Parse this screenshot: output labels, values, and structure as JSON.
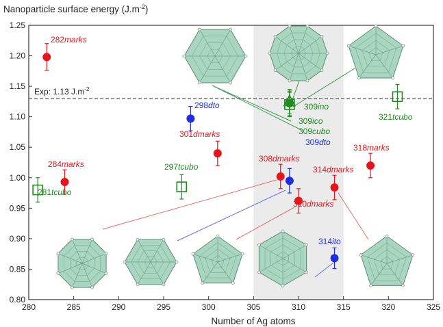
{
  "chart_data": {
    "type": "scatter",
    "title": "Nanoparticle surface energy (J.m",
    "title_sup": "-2",
    "title_close": ")",
    "xlabel": "Number of Ag atoms",
    "xlim": [
      280,
      325
    ],
    "ylim": [
      0.8,
      1.25
    ],
    "xticks": [
      "280",
      "285",
      "290",
      "295",
      "300",
      "305",
      "310",
      "315",
      "320",
      "325"
    ],
    "xtick_values": [
      280,
      285,
      290,
      295,
      300,
      305,
      310,
      315,
      320,
      325
    ],
    "yticks": [
      "0.80",
      "0.85",
      "0.90",
      "0.95",
      "1.00",
      "1.05",
      "1.10",
      "1.15",
      "1.20",
      "1.25"
    ],
    "ytick_values": [
      0.8,
      0.85,
      0.9,
      0.95,
      1.0,
      1.05,
      1.1,
      1.15,
      1.2,
      1.25
    ],
    "grid": false,
    "shaded_region": {
      "x": [
        305,
        315
      ]
    },
    "reference_line": {
      "y": 1.13,
      "label": "Exp: 1.13 J.m",
      "label_sup": "-2"
    },
    "colors": {
      "marks": "#e8141b",
      "dto": "#1f2fe0",
      "ito": "#1f2fe0",
      "tcubo": "#1e8c1e",
      "ico": "#1e8c1e",
      "cubo": "#1e8c1e",
      "ino": "#1e8c1e",
      "shade": "#ebebeb",
      "particle": "#a9d6c0"
    },
    "points": [
      {
        "x": 282,
        "y": 1.198,
        "err": 0.022,
        "marker": "circle",
        "color": "#e8141b",
        "num": "282",
        "suffix": "marks"
      },
      {
        "x": 284,
        "y": 0.993,
        "err": 0.02,
        "marker": "circle",
        "color": "#e8141b",
        "num": "284",
        "suffix": "marks"
      },
      {
        "x": 281,
        "y": 0.98,
        "err": 0.02,
        "marker": "square",
        "color": "#1e8c1e",
        "num": "281",
        "suffix": "tcubo"
      },
      {
        "x": 297,
        "y": 0.985,
        "err": 0.02,
        "marker": "square",
        "color": "#1e8c1e",
        "num": "297",
        "suffix": "tcubo"
      },
      {
        "x": 298,
        "y": 1.097,
        "err": 0.02,
        "marker": "circle",
        "color": "#1f2fe0",
        "num": "298",
        "suffix": "dto"
      },
      {
        "x": 301,
        "y": 1.04,
        "err": 0.02,
        "marker": "circle",
        "color": "#e8141b",
        "num": "301",
        "suffix": "dmarks"
      },
      {
        "x": 308,
        "y": 1.002,
        "err": 0.02,
        "marker": "circle",
        "color": "#e8141b",
        "num": "308",
        "suffix": "dmarks"
      },
      {
        "x": 309,
        "y": 0.995,
        "err": 0.02,
        "marker": "circle",
        "color": "#1f2fe0",
        "num": "309",
        "suffix": "dto"
      },
      {
        "x": 310,
        "y": 0.962,
        "err": 0.02,
        "marker": "circle",
        "color": "#e8141b",
        "num": "310",
        "suffix": "dmarks"
      },
      {
        "x": 314,
        "y": 0.984,
        "err": 0.02,
        "marker": "circle",
        "color": "#e8141b",
        "num": "314",
        "suffix": "dmarks"
      },
      {
        "x": 314,
        "y": 0.868,
        "err": 0.017,
        "marker": "circle",
        "color": "#1f2fe0",
        "num": "314",
        "suffix": "ito"
      },
      {
        "x": 318,
        "y": 1.02,
        "err": 0.02,
        "marker": "circle",
        "color": "#e8141b",
        "num": "318",
        "suffix": "marks"
      },
      {
        "x": 321,
        "y": 1.133,
        "err": 0.02,
        "marker": "square",
        "color": "#1e8c1e",
        "num": "321",
        "suffix": "tcubo"
      },
      {
        "x": 309,
        "y": 1.12,
        "err": 0.02,
        "marker": "square",
        "color": "#1e8c1e",
        "num": "309",
        "suffix": "cubo"
      },
      {
        "x": 309,
        "y": 1.125,
        "err": 0.02,
        "marker": "triangle",
        "color": "#1e8c1e",
        "num": "309",
        "suffix": "ico"
      },
      {
        "x": 309,
        "y": 1.122,
        "err": 0.02,
        "marker": "circle",
        "color": "#1e8c1e",
        "num": "309",
        "suffix": "ino"
      }
    ]
  }
}
